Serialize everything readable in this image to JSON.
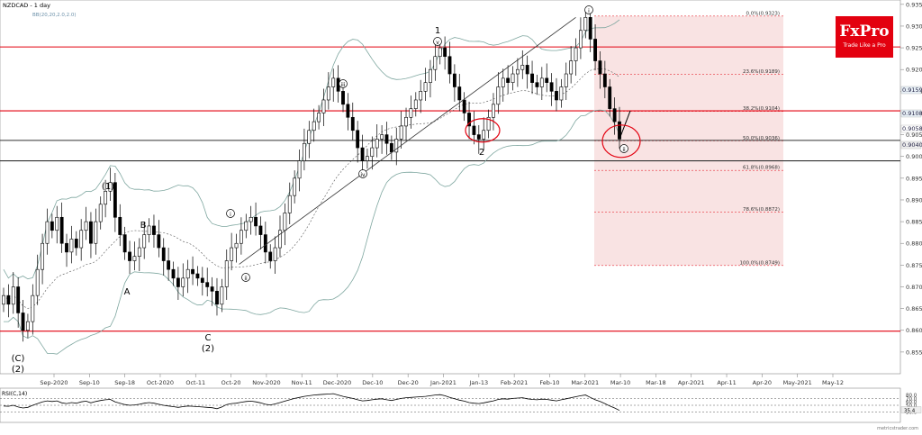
{
  "chart_data": {
    "type": "candlestick",
    "title": "NZDCAD - 1 day",
    "indicator_label": "BB(20,20,2.0,2.0)",
    "ylim": [
      0.85,
      0.936
    ],
    "y_ticks": [
      "0.9350",
      "0.9300",
      "0.9250",
      "0.9200",
      "0.9150",
      "0.9100",
      "0.9050",
      "0.9000",
      "0.8950",
      "0.8900",
      "0.8850",
      "0.8800",
      "0.8750",
      "0.8700",
      "0.8650",
      "0.8600",
      "0.8550"
    ],
    "x_ticks": [
      "Sep-2020",
      "Sep-10",
      "Sep-18",
      "Oct-2020",
      "Oct-11",
      "Oct-20",
      "Nov-2020",
      "Nov-11",
      "Dec-2020",
      "Dec-10",
      "Dec-20",
      "Jan-2021",
      "Jan-13",
      "Feb-2021",
      "Feb-10",
      "Mar-2021",
      "Mar-10",
      "Mar-18",
      "Apr-2021",
      "Apr-11",
      "Apr-20",
      "May-2021",
      "May-12"
    ],
    "current_price_labels": [
      "0.9159",
      "0.9108",
      "0.9058",
      "0.9040"
    ],
    "horizontal_levels": [
      {
        "value": 0.9252,
        "color": "#e3000f"
      },
      {
        "value": 0.9105,
        "color": "#e3000f"
      },
      {
        "value": 0.9037,
        "color": "#333333"
      },
      {
        "value": 0.899,
        "color": "#333333"
      },
      {
        "value": 0.8598,
        "color": "#e3000f"
      }
    ],
    "fibonacci": [
      {
        "label": "0.0%(0.9323)",
        "value": 0.9323
      },
      {
        "label": "23.6%(0.9189)",
        "value": 0.9189
      },
      {
        "label": "38.2%(0.9104)",
        "value": 0.9104
      },
      {
        "label": "50.0%(0.9036)",
        "value": 0.9036
      },
      {
        "label": "61.8%(0.8968)",
        "value": 0.8968
      },
      {
        "label": "78.6%(0.8872)",
        "value": 0.8872
      },
      {
        "label": "100.0%(0.8749)",
        "value": 0.8749
      }
    ],
    "wave_labels": [
      "(C)",
      "(2)",
      "(1)",
      "A",
      "B",
      "C",
      "(2)",
      "i",
      "ii",
      "iii",
      "iv",
      "1",
      "v",
      "2",
      "i",
      "ii"
    ],
    "closes": [
      0.868,
      0.866,
      0.87,
      0.864,
      0.86,
      0.862,
      0.868,
      0.874,
      0.88,
      0.885,
      0.883,
      0.886,
      0.88,
      0.878,
      0.881,
      0.879,
      0.883,
      0.885,
      0.88,
      0.885,
      0.889,
      0.892,
      0.894,
      0.886,
      0.882,
      0.878,
      0.876,
      0.877,
      0.879,
      0.882,
      0.884,
      0.882,
      0.879,
      0.876,
      0.874,
      0.872,
      0.87,
      0.872,
      0.874,
      0.873,
      0.872,
      0.871,
      0.87,
      0.869,
      0.866,
      0.87,
      0.876,
      0.879,
      0.88,
      0.883,
      0.885,
      0.886,
      0.884,
      0.882,
      0.878,
      0.876,
      0.879,
      0.883,
      0.887,
      0.891,
      0.895,
      0.899,
      0.903,
      0.906,
      0.908,
      0.91,
      0.913,
      0.916,
      0.918,
      0.915,
      0.912,
      0.909,
      0.906,
      0.902,
      0.899,
      0.9,
      0.902,
      0.904,
      0.905,
      0.903,
      0.901,
      0.904,
      0.907,
      0.909,
      0.911,
      0.913,
      0.915,
      0.917,
      0.92,
      0.923,
      0.925,
      0.923,
      0.919,
      0.916,
      0.913,
      0.91,
      0.907,
      0.905,
      0.904,
      0.906,
      0.909,
      0.912,
      0.916,
      0.918,
      0.917,
      0.919,
      0.92,
      0.921,
      0.919,
      0.917,
      0.916,
      0.918,
      0.917,
      0.915,
      0.913,
      0.916,
      0.919,
      0.922,
      0.925,
      0.929,
      0.932,
      0.927,
      0.922,
      0.919,
      0.916,
      0.911,
      0.908,
      0.904
    ],
    "rsi": {
      "label": "RSI(C,14)",
      "ylim": [
        0,
        100
      ],
      "levels": [
        30.0,
        50.0,
        70.0
      ],
      "tick_labels": [
        "80.0",
        "70.0",
        "60.0",
        "50.0",
        "40.0",
        "30.0"
      ],
      "current_label": "35.4",
      "values": [
        48,
        47,
        50,
        45,
        42,
        44,
        50,
        55,
        60,
        63,
        61,
        63,
        57,
        55,
        58,
        56,
        60,
        62,
        57,
        61,
        64,
        66,
        67,
        60,
        56,
        52,
        50,
        51,
        53,
        56,
        58,
        56,
        53,
        50,
        48,
        46,
        44,
        46,
        48,
        47,
        46,
        45,
        44,
        43,
        40,
        45,
        52,
        55,
        56,
        59,
        61,
        62,
        60,
        57,
        53,
        51,
        54,
        58,
        62,
        66,
        70,
        73,
        76,
        78,
        80,
        81,
        82,
        83,
        84,
        80,
        76,
        73,
        70,
        66,
        63,
        64,
        66,
        68,
        69,
        66,
        64,
        67,
        70,
        72,
        73,
        74,
        75,
        76,
        78,
        80,
        81,
        78,
        73,
        69,
        65,
        62,
        58,
        56,
        55,
        57,
        60,
        63,
        67,
        69,
        68,
        70,
        71,
        72,
        69,
        67,
        66,
        68,
        67,
        65,
        63,
        66,
        69,
        72,
        75,
        78,
        80,
        73,
        66,
        61,
        55,
        48,
        42,
        35
      ]
    }
  },
  "branding": {
    "logo_text": "FxPro",
    "tagline": "Trade Like a Pro",
    "color": "#e3000f"
  },
  "watermark": "metricstrader.com"
}
